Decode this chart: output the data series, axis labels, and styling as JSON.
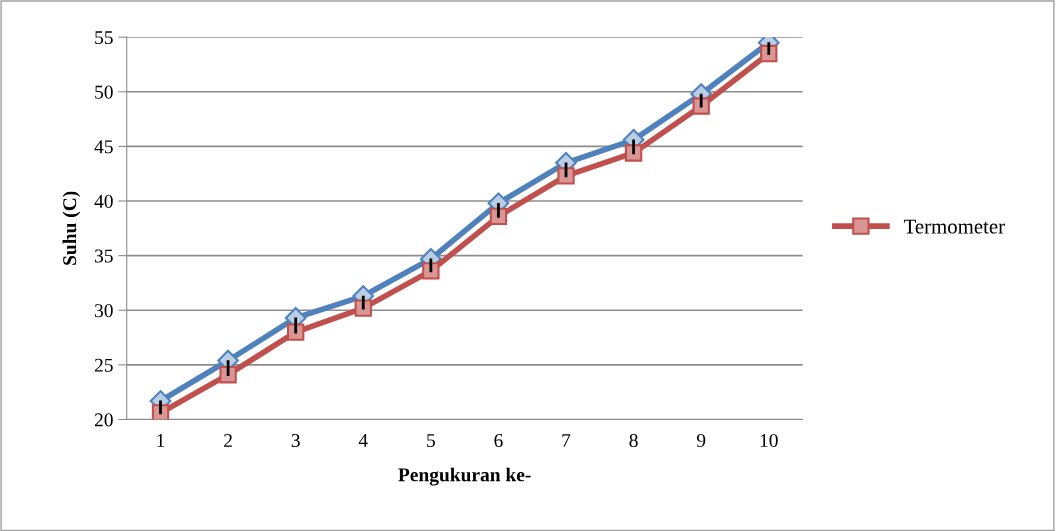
{
  "chart_data": {
    "type": "line",
    "xlabel": "Pengukuran ke-",
    "ylabel": "Suhu (C)",
    "categories": [
      "1",
      "2",
      "3",
      "4",
      "5",
      "6",
      "7",
      "8",
      "9",
      "10"
    ],
    "series": [
      {
        "color": "#4f81bd",
        "marker": "diamond",
        "values": [
          21.7,
          25.4,
          29.3,
          31.3,
          34.7,
          39.8,
          43.5,
          45.6,
          49.8,
          54.5
        ]
      },
      {
        "name": "Termometer",
        "color": "#c0504d",
        "marker": "square",
        "values": [
          20.6,
          24.1,
          28.0,
          30.2,
          33.6,
          38.6,
          42.3,
          44.4,
          48.7,
          53.5
        ],
        "errors": [
          [
            20.6,
            21.6
          ],
          [
            24.1,
            25.3
          ],
          [
            28.0,
            29.2
          ],
          [
            30.2,
            31.2
          ],
          [
            33.6,
            34.6
          ],
          [
            38.6,
            39.7
          ],
          [
            42.3,
            43.4
          ],
          [
            44.4,
            45.5
          ],
          [
            48.7,
            49.7
          ],
          [
            53.5,
            54.4
          ]
        ]
      }
    ],
    "ylim": [
      20,
      55
    ],
    "yticks": [
      20,
      25,
      30,
      35,
      40,
      45,
      50,
      55
    ],
    "grid": "y",
    "legend": "right",
    "line_style": "solid"
  }
}
